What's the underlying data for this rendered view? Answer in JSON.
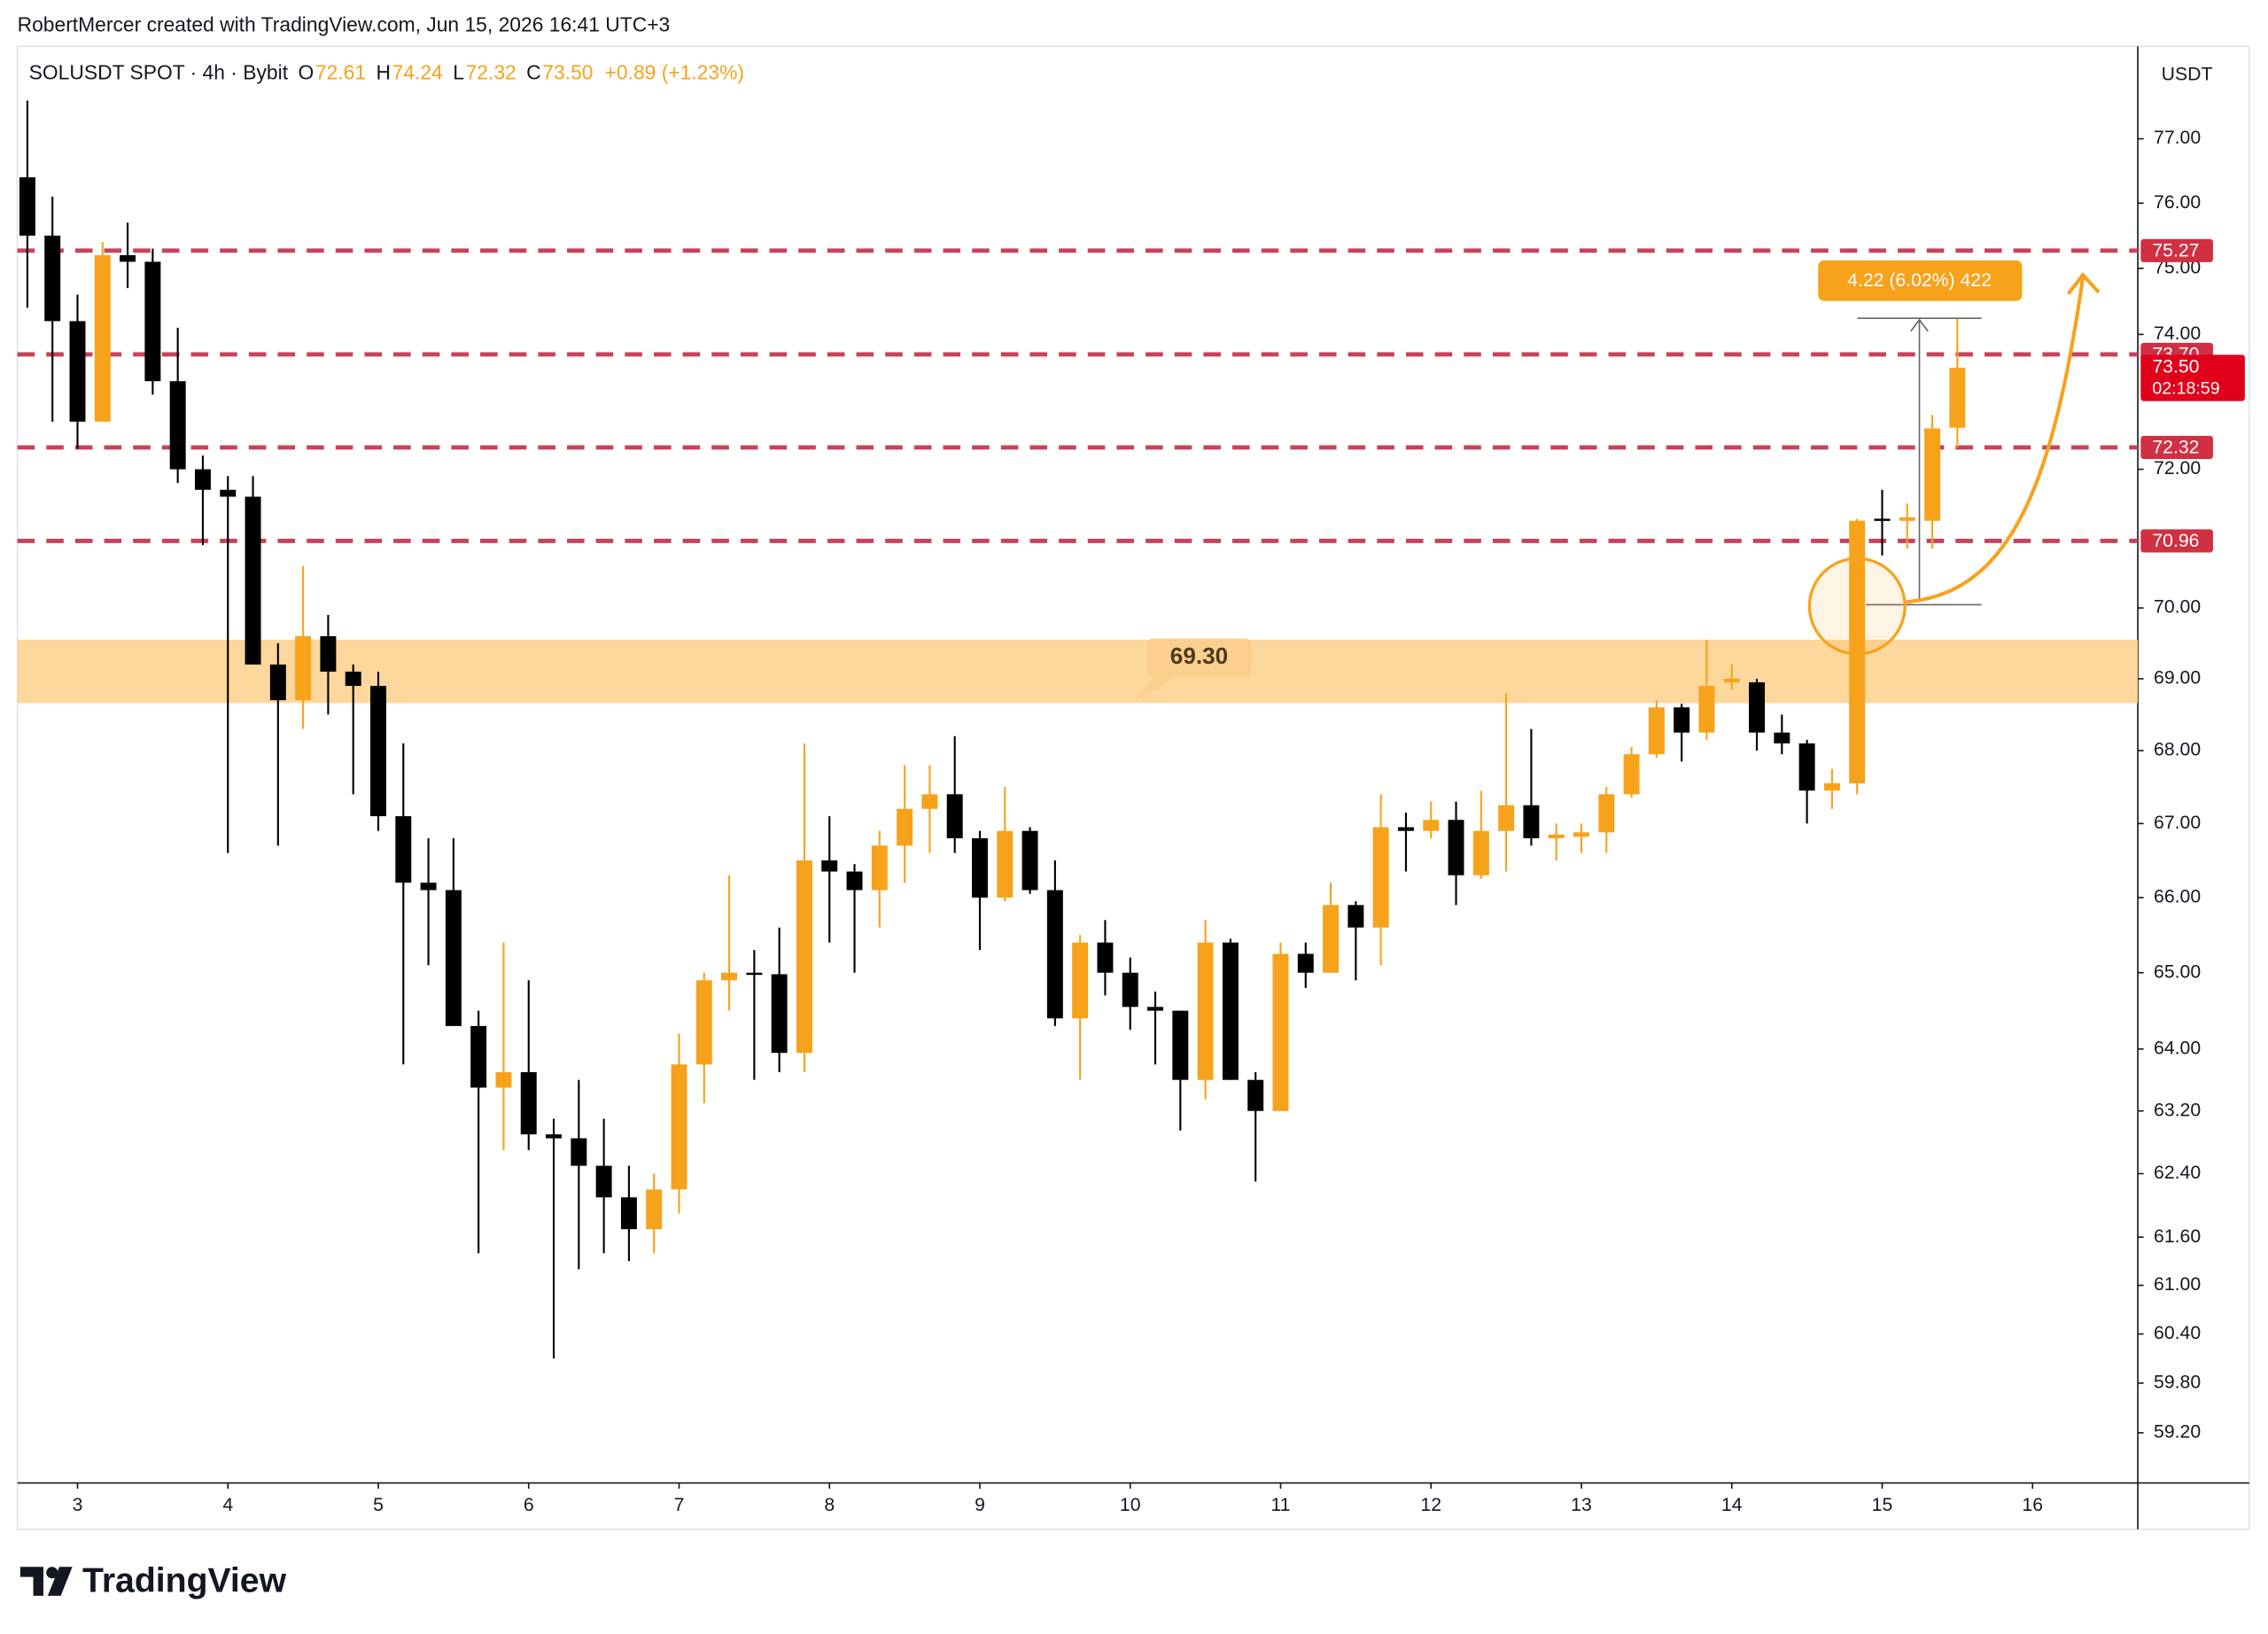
{
  "header": "RobertMercer created with TradingView.com, Jun 15, 2026 16:41 UTC+3",
  "logo": "TradingView",
  "chart_data": {
    "type": "candlestick",
    "legend": {
      "symbol": "SOLUSDT SPOT · 4h · Bybit",
      "field_names": [
        "O",
        "H",
        "L",
        "C"
      ],
      "open": 72.61,
      "high": 74.24,
      "low": 72.32,
      "close": {
        "value": 73.5,
        "label": "73.50"
      },
      "change": "+0.89 (+1.23%)"
    },
    "currency": "USDT",
    "log_scale": true,
    "colors": {
      "up": "#f7a21b",
      "down": "#000000",
      "level": "#c9425a",
      "zone": "#fdd597"
    },
    "open": [
      76.4,
      75.5,
      74.2,
      72.7,
      75.2,
      75.1,
      73.3,
      72.0,
      71.7,
      71.6,
      69.2,
      68.7,
      69.6,
      69.1,
      68.9,
      67.1,
      66.2,
      66.1,
      64.3,
      63.5,
      63.7,
      62.9,
      62.85,
      62.5,
      62.1,
      61.7,
      62.2,
      63.8,
      64.9,
      65.0,
      64.98,
      63.95,
      66.5,
      66.35,
      66.1,
      66.7,
      67.2,
      67.4,
      66.8,
      66.0,
      66.9,
      66.1,
      64.4,
      65.4,
      65.0,
      64.55,
      64.5,
      63.6,
      65.4,
      63.6,
      63.2,
      65.25,
      65.0,
      65.9,
      65.6,
      66.95,
      66.9,
      67.05,
      66.3,
      66.9,
      67.25,
      66.8,
      66.82,
      66.88,
      67.4,
      67.95,
      68.6,
      68.25,
      68.95,
      68.95,
      68.25,
      68.1,
      67.45,
      67.55,
      71.28,
      71.25,
      71.25,
      72.61
    ],
    "high": [
      77.6,
      76.1,
      74.6,
      75.4,
      75.7,
      75.3,
      74.1,
      72.2,
      71.9,
      71.9,
      69.5,
      70.6,
      69.9,
      69.2,
      69.1,
      68.1,
      66.8,
      66.8,
      64.5,
      65.4,
      64.9,
      63.1,
      63.6,
      63.1,
      62.5,
      62.4,
      64.2,
      65.0,
      66.3,
      65.3,
      65.6,
      68.1,
      67.1,
      66.45,
      66.9,
      67.8,
      67.8,
      68.2,
      66.9,
      67.5,
      66.95,
      66.5,
      65.5,
      65.7,
      65.2,
      64.75,
      64.5,
      65.7,
      65.45,
      63.7,
      65.4,
      65.4,
      66.2,
      65.95,
      67.4,
      67.15,
      67.3,
      67.3,
      67.45,
      68.8,
      68.3,
      67.0,
      67.0,
      67.5,
      68.05,
      68.7,
      68.65,
      69.55,
      69.2,
      69.0,
      68.5,
      68.15,
      67.75,
      71.28,
      71.7,
      71.5,
      72.8,
      74.24
    ],
    "low": [
      74.4,
      72.7,
      72.3,
      72.7,
      74.7,
      73.1,
      71.8,
      70.9,
      66.6,
      69.2,
      66.7,
      68.3,
      68.5,
      67.4,
      66.9,
      63.8,
      65.1,
      64.3,
      61.4,
      62.7,
      62.7,
      60.1,
      61.2,
      61.4,
      61.3,
      61.4,
      61.9,
      63.3,
      64.5,
      63.6,
      63.7,
      63.7,
      65.4,
      65.0,
      65.6,
      66.2,
      66.6,
      66.6,
      65.3,
      65.95,
      66.05,
      64.3,
      63.6,
      64.7,
      64.25,
      63.8,
      62.95,
      63.35,
      63.6,
      62.3,
      63.2,
      64.8,
      65.0,
      64.9,
      65.1,
      66.35,
      66.8,
      65.9,
      66.25,
      66.35,
      66.7,
      66.5,
      66.6,
      66.6,
      67.35,
      67.9,
      67.85,
      68.15,
      68.85,
      68.0,
      67.95,
      67.0,
      67.2,
      67.4,
      70.75,
      70.85,
      70.85,
      72.32
    ],
    "close": [
      75.5,
      74.2,
      72.7,
      75.2,
      75.1,
      73.3,
      72.0,
      71.7,
      71.6,
      69.2,
      68.7,
      69.6,
      69.1,
      68.9,
      67.1,
      66.2,
      66.1,
      64.3,
      63.5,
      63.7,
      62.9,
      62.85,
      62.5,
      62.1,
      61.7,
      62.2,
      63.8,
      64.9,
      65.0,
      64.98,
      63.95,
      66.5,
      66.35,
      66.1,
      66.7,
      67.2,
      67.4,
      66.8,
      66.0,
      66.9,
      66.1,
      64.4,
      65.4,
      65.0,
      64.55,
      64.5,
      63.6,
      65.4,
      63.6,
      63.2,
      65.25,
      65.0,
      65.9,
      65.6,
      66.95,
      66.9,
      67.05,
      66.3,
      66.9,
      67.25,
      66.8,
      66.85,
      66.88,
      67.4,
      67.95,
      68.6,
      68.25,
      68.9,
      69.0,
      68.25,
      68.1,
      67.45,
      67.55,
      71.25,
      71.25,
      71.3,
      72.6,
      73.5
    ],
    "xlim": [
      -0.4,
      84.2
    ],
    "xticks": [
      {
        "value": 2,
        "label": "3"
      },
      {
        "value": 8,
        "label": "4"
      },
      {
        "value": 14,
        "label": "5"
      },
      {
        "value": 20,
        "label": "6"
      },
      {
        "value": 26,
        "label": "7"
      },
      {
        "value": 32,
        "label": "8"
      },
      {
        "value": 38,
        "label": "9"
      },
      {
        "value": 44,
        "label": "10"
      },
      {
        "value": 50,
        "label": "11"
      },
      {
        "value": 56,
        "label": "12"
      },
      {
        "value": 62,
        "label": "13"
      },
      {
        "value": 68,
        "label": "14"
      },
      {
        "value": 74,
        "label": "15"
      },
      {
        "value": 80,
        "label": "16"
      }
    ],
    "ylim": [
      58.6,
      78.46
    ],
    "yticks": [
      {
        "value": 77,
        "label": "77.00"
      },
      {
        "value": 76,
        "label": "76.00"
      },
      {
        "value": 75,
        "label": "75.00"
      },
      {
        "value": 74,
        "label": "74.00"
      },
      {
        "value": 72,
        "label": "72.00"
      },
      {
        "value": 70,
        "label": "70.00"
      },
      {
        "value": 69,
        "label": "69.00"
      },
      {
        "value": 68,
        "label": "68.00"
      },
      {
        "value": 67,
        "label": "67.00"
      },
      {
        "value": 66,
        "label": "66.00"
      },
      {
        "value": 65,
        "label": "65.00"
      },
      {
        "value": 64,
        "label": "64.00"
      },
      {
        "value": 63.2,
        "label": "63.20"
      },
      {
        "value": 62.4,
        "label": "62.40"
      },
      {
        "value": 61.6,
        "label": "61.60"
      },
      {
        "value": 61,
        "label": "61.00"
      },
      {
        "value": 60.4,
        "label": "60.40"
      },
      {
        "value": 59.8,
        "label": "59.80"
      },
      {
        "value": 59.2,
        "label": "59.20"
      }
    ],
    "levels": [
      75.27,
      {
        "value": 73.7,
        "label": "73.70"
      },
      72.32,
      70.96
    ],
    "last_price": {
      "value": 73.5,
      "label": "73.50",
      "countdown": "02:18:59"
    },
    "annotations": {
      "zone": [
        68.66,
        69.55
      ],
      "zone_label": {
        "value": 69.3,
        "label": "69.30"
      },
      "measure": "4.22 (6.02%) 422"
    }
  }
}
